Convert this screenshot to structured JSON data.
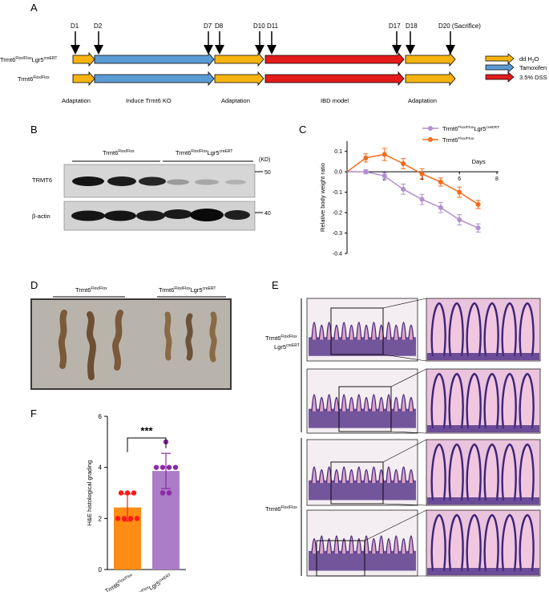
{
  "panel_a": {
    "letter": "A",
    "days": [
      "D1",
      "D2",
      "D7",
      "D8",
      "D10",
      "D11",
      "D17",
      "D18",
      "D20 (Sacrifice)"
    ],
    "group1": {
      "base": "Trmt6",
      "sup1": "Flox/Flox",
      "mid": "Lgr5",
      "sup2": "creERT"
    },
    "group2": {
      "base": "Trmt6",
      "sup1": "Flox/Flox"
    },
    "phases": [
      "Adaptation",
      "Induce Trmt6 KO",
      "Adaptation",
      "IBD model",
      "Adaptation"
    ],
    "legend": {
      "water": {
        "main": "dd H",
        "sub": "2",
        "tail": "O"
      },
      "tamoxifen": "Tamoxifen",
      "dss": "3.5% DSS"
    },
    "colors": {
      "adaptation": "#f7b40f",
      "tamoxifen": "#5b9bd5",
      "dss": "#e31b1b"
    }
  },
  "panel_b": {
    "letter": "B",
    "header1": {
      "base": "Trmt6",
      "sup": "Flox/Flox"
    },
    "header2": {
      "base": "Trmt6",
      "sup1": "Flox/Flox",
      "mid": "Lgr5",
      "sup2": "creERT"
    },
    "kd": "(KD)",
    "rows": [
      {
        "label": "TRMT6",
        "marker": "50"
      },
      {
        "label": "β-actin",
        "marker": "40"
      }
    ]
  },
  "panel_c": {
    "letter": "C",
    "chart_data": {
      "type": "line",
      "ylabel": "Relative body weight ratio",
      "xlabel": "Days",
      "xlim": [
        0,
        8
      ],
      "ylim": [
        -0.4,
        0.15
      ],
      "xticks": [
        "2",
        "4",
        "6",
        "8"
      ],
      "yticks": [
        "0.1",
        "0.0",
        "-0.1",
        "-0.2",
        "-0.3",
        "-0.4"
      ],
      "legend_position": "top",
      "series": [
        {
          "name": {
            "base": "Trmt6",
            "sup1": "Flox/Flox",
            "mid": "Lgr5",
            "sup2": "creERT"
          },
          "color": "#b28fce",
          "x": [
            1,
            2,
            3,
            4,
            5,
            6,
            7
          ],
          "y": [
            0.0,
            -0.02,
            -0.085,
            -0.135,
            -0.175,
            -0.235,
            -0.275
          ],
          "err": [
            0.01,
            0.015,
            0.025,
            0.025,
            0.025,
            0.025,
            0.02
          ]
        },
        {
          "name": {
            "base": "Trmt6",
            "sup1": "Flox/Flox"
          },
          "color": "#f26b1d",
          "x": [
            1,
            2,
            3,
            4,
            5,
            6,
            7
          ],
          "y": [
            0.068,
            0.085,
            0.04,
            -0.01,
            -0.05,
            -0.1,
            -0.16
          ],
          "err": [
            0.02,
            0.03,
            0.025,
            0.025,
            0.02,
            0.025,
            0.02
          ]
        }
      ]
    }
  },
  "panel_d": {
    "letter": "D",
    "label1": {
      "base": "Trmt6",
      "sup": "Flox/Flox"
    },
    "label2": {
      "base": "Trmt6",
      "sup1": "Flox/Flox",
      "mid": "Lgr5",
      "sup2": "creERT"
    }
  },
  "panel_e": {
    "letter": "E",
    "label_top": {
      "base": "Trmt6",
      "sup1": "Flox/Flox",
      "mid": "Lgr5",
      "sup2": "creERT"
    },
    "label_bottom": {
      "base": "Trmt6",
      "sup": "Flox/Flox"
    }
  },
  "panel_f": {
    "letter": "F",
    "chart_data": {
      "type": "bar",
      "ylabel": "H&E histological grading",
      "ylim": [
        0,
        6
      ],
      "yticks": [
        "0",
        "2",
        "4",
        "6"
      ],
      "significance": "***",
      "categories": [
        {
          "base": "Trmt6",
          "sup": "Flox/Flox"
        },
        {
          "base": "Trmt6",
          "sup1": "Flox/Flox",
          "mid": "Lgr5",
          "sup2": "creERT"
        }
      ],
      "values": [
        2.43,
        3.86
      ],
      "errors": [
        0.53,
        0.69
      ],
      "colors": [
        "#ff8c14",
        "#ab7cc7"
      ],
      "dot_colors": [
        "#ff1a1a",
        "#8b2aa6"
      ],
      "points": [
        [
          3,
          3,
          3,
          2,
          2,
          2,
          2
        ],
        [
          5,
          4,
          4,
          4,
          4,
          3,
          3
        ]
      ]
    }
  }
}
